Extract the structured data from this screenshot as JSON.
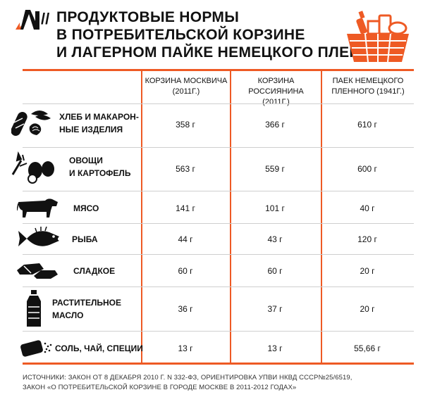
{
  "header": {
    "title_lines": [
      "ПРОДУКТОВЫЕ НОРМЫ",
      "В ПОТРЕБИТЕЛЬСКОЙ КОРЗИНЕ",
      "И ЛАГЕРНОМ ПАЙКЕ НЕМЕЦКОГО ПЛЕННОГО"
    ],
    "slashes": "//",
    "accent_color": "#ee5a24"
  },
  "columns": [
    {
      "line1": "КОРЗИНА МОСКВИЧА",
      "line2": "(2011г.)"
    },
    {
      "line1": "КОРЗИНА РОССИЯНИНА",
      "line2": "(2011г.)"
    },
    {
      "line1": "ПАЕК НЕМЕЦКОГО",
      "line2": "ПЛЕННОГО (1941г.)"
    }
  ],
  "rows": [
    {
      "icon": "bread-pasta-icon",
      "label": "ХЛЕБ И  МАКАРОН-\nНЫЕ ИЗДЕЛИЯ",
      "values": [
        "358 г",
        "366 г",
        "610 г"
      ]
    },
    {
      "icon": "vegetables-icon",
      "label": "ОВОЩИ\nИ КАРТОФЕЛЬ",
      "values": [
        "563 г",
        "559 г",
        "600 г"
      ]
    },
    {
      "icon": "cow-icon",
      "label": "МЯСО",
      "values": [
        "141 г",
        "101 г",
        "40 г"
      ]
    },
    {
      "icon": "fish-icon",
      "label": "РЫБА",
      "values": [
        "44 г",
        "43 г",
        "120 г"
      ]
    },
    {
      "icon": "candy-icon",
      "label": "СЛАДКОЕ",
      "values": [
        "60 г",
        "60 г",
        "20 г"
      ]
    },
    {
      "icon": "oil-bottle-icon",
      "label": "РАСТИТЕЛЬНОЕ\nМАСЛО",
      "values": [
        "36 г",
        "37 г",
        "20 г"
      ]
    },
    {
      "icon": "salt-tea-spices-icon",
      "label": "СОЛЬ, ЧАЙ, СПЕЦИИ",
      "values": [
        "13 г",
        "13 г",
        "55,66 г"
      ]
    }
  ],
  "sources": [
    "ИСТОЧНИКИ:  ЗАКОН ОТ 8 ДЕКАБРЯ 2010 Г. N 332-ФЗ, ОРИЕНТИРОВКА УПВИ НКВД СССР№25/6519,",
    "ЗАКОН «О ПОТРЕБИТЕЛЬСКОЙ КОРЗИНЕ В ГОРОДЕ МОСКВЕ В 2011-2012 ГОДАХ»"
  ]
}
